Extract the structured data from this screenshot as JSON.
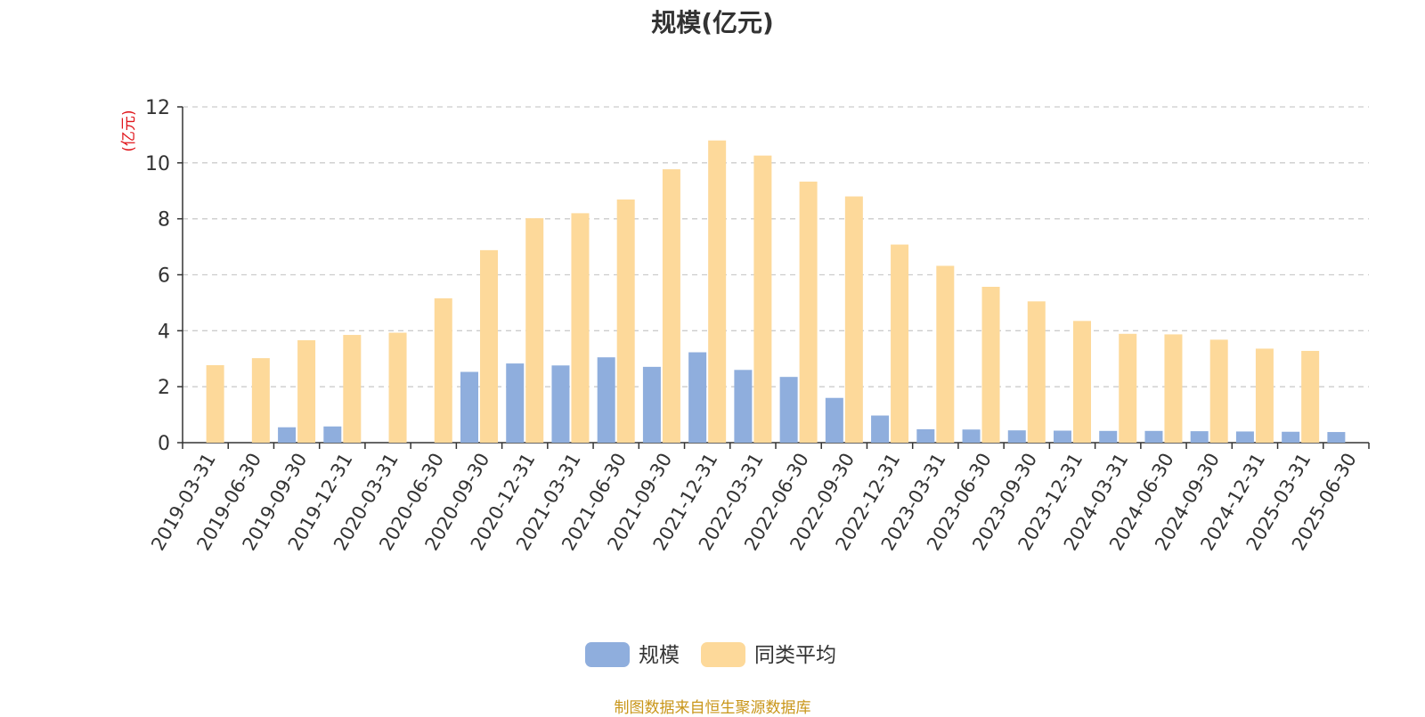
{
  "chart_data": {
    "type": "bar",
    "title": "规模(亿元)",
    "ylabel": "(亿元)",
    "xlabel": "",
    "ylim": [
      0,
      12
    ],
    "yticks": [
      0,
      2,
      4,
      6,
      8,
      10,
      12
    ],
    "grid": true,
    "legend_position": "bottom-center",
    "categories": [
      "2019-03-31",
      "2019-06-30",
      "2019-09-30",
      "2019-12-31",
      "2020-03-31",
      "2020-06-30",
      "2020-09-30",
      "2020-12-31",
      "2021-03-31",
      "2021-06-30",
      "2021-09-30",
      "2021-12-31",
      "2022-03-31",
      "2022-06-30",
      "2022-09-30",
      "2022-12-31",
      "2023-03-31",
      "2023-06-30",
      "2023-09-30",
      "2023-12-31",
      "2024-03-31",
      "2024-06-30",
      "2024-09-30",
      "2024-12-31",
      "2025-03-31",
      "2025-06-30"
    ],
    "series": [
      {
        "name": "规模",
        "color": "#8faedd",
        "values": [
          0,
          0,
          0.55,
          0.58,
          0,
          0,
          2.53,
          2.83,
          2.76,
          3.05,
          2.71,
          3.23,
          2.6,
          2.35,
          1.6,
          0.97,
          0.48,
          0.47,
          0.44,
          0.43,
          0.42,
          0.42,
          0.41,
          0.4,
          0.39,
          0.38
        ]
      },
      {
        "name": "同类平均",
        "color": "#fdd99a",
        "values": [
          2.77,
          3.02,
          3.66,
          3.85,
          3.93,
          5.16,
          6.88,
          8.02,
          8.2,
          8.69,
          9.77,
          10.8,
          10.26,
          9.33,
          8.8,
          7.08,
          6.32,
          5.57,
          5.05,
          4.35,
          3.89,
          3.87,
          3.68,
          3.36,
          3.28,
          null
        ]
      }
    ]
  },
  "source_note": "制图数据来自恒生聚源数据库"
}
